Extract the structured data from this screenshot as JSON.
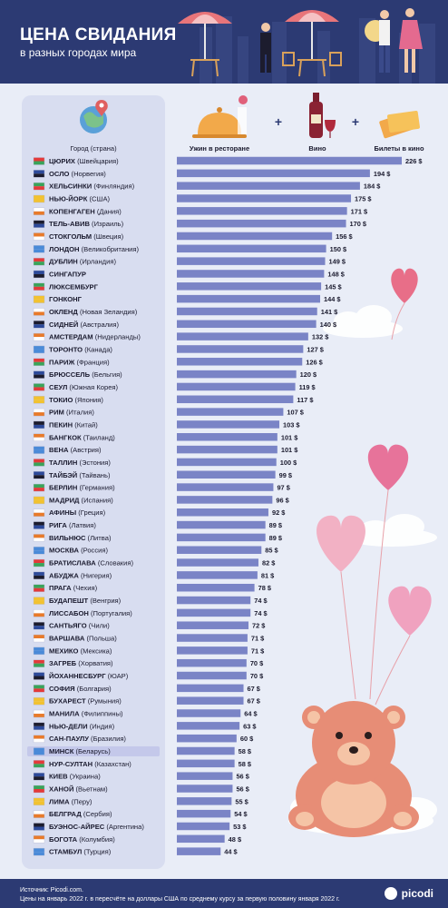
{
  "header": {
    "title": "ЦЕНА СВИДАНИЯ",
    "subtitle": "в разных городах мира"
  },
  "columns": {
    "city": "Город (страна)",
    "dinner": "Ужин в ресторане",
    "wine": "Вино",
    "cinema": "Билеты в кино"
  },
  "footer": {
    "source": "Источник: Picodi.com.",
    "note": "Цены на январь 2022 г. в пересчёте на доллары США по среднему курсу за первую половину января 2022 г.",
    "logo": "picodi"
  },
  "colors": {
    "header": "#2c3a73",
    "bar": "#7a84c6",
    "highlight": "#c4c8ea",
    "panel": "#d8ddf0",
    "background": "#e9edf7"
  },
  "chart_data": {
    "type": "bar",
    "orientation": "horizontal",
    "unit": "$",
    "highlight": "МИНСК",
    "rows": [
      {
        "city": "ЦЮРИХ",
        "country": "(Швейцария)",
        "value": 226,
        "label": "226 $"
      },
      {
        "city": "ОСЛО",
        "country": "(Норвегия)",
        "value": 194,
        "label": "194 $"
      },
      {
        "city": "ХЕЛЬСИНКИ",
        "country": "(Финляндия)",
        "value": 184,
        "label": "184 $"
      },
      {
        "city": "НЬЮ-ЙОРК",
        "country": "(США)",
        "value": 175,
        "label": "175 $"
      },
      {
        "city": "КОПЕНГАГЕН",
        "country": "(Дания)",
        "value": 171,
        "label": "171 $"
      },
      {
        "city": "ТЕЛЬ-АВИВ",
        "country": "(Израиль)",
        "value": 170,
        "label": "170 $"
      },
      {
        "city": "СТОКГОЛЬМ",
        "country": "(Швеция)",
        "value": 156,
        "label": "156 $"
      },
      {
        "city": "ЛОНДОН",
        "country": "(Великобритания)",
        "value": 150,
        "label": "150 $"
      },
      {
        "city": "ДУБЛИН",
        "country": "(Ирландия)",
        "value": 149,
        "label": "149 $"
      },
      {
        "city": "СИНГАПУР",
        "country": "",
        "value": 148,
        "label": "148 $"
      },
      {
        "city": "ЛЮКСЕМБУРГ",
        "country": "",
        "value": 145,
        "label": "145 $"
      },
      {
        "city": "ГОНКОНГ",
        "country": "",
        "value": 144,
        "label": "144 $"
      },
      {
        "city": "ОКЛЕНД",
        "country": "(Новая Зеландия)",
        "value": 141,
        "label": "141 $"
      },
      {
        "city": "СИДНЕЙ",
        "country": "(Австралия)",
        "value": 140,
        "label": "140 $"
      },
      {
        "city": "АМСТЕРДАМ",
        "country": "(Нидерланды)",
        "value": 132,
        "label": "132 $"
      },
      {
        "city": "ТОРОНТО",
        "country": "(Канада)",
        "value": 127,
        "label": "127 $"
      },
      {
        "city": "ПАРИЖ",
        "country": "(Франция)",
        "value": 126,
        "label": "126 $"
      },
      {
        "city": "БРЮССЕЛЬ",
        "country": "(Бельгия)",
        "value": 120,
        "label": "120 $"
      },
      {
        "city": "СЕУЛ",
        "country": "(Южная Корея)",
        "value": 119,
        "label": "119 $"
      },
      {
        "city": "ТОКИО",
        "country": "(Япония)",
        "value": 117,
        "label": "117 $"
      },
      {
        "city": "РИМ",
        "country": "(Италия)",
        "value": 107,
        "label": "107 $"
      },
      {
        "city": "ПЕКИН",
        "country": "(Китай)",
        "value": 103,
        "label": "103 $"
      },
      {
        "city": "БАНГКОК",
        "country": "(Таиланд)",
        "value": 101,
        "label": "101 $"
      },
      {
        "city": "ВЕНА",
        "country": "(Австрия)",
        "value": 101,
        "label": "101 $"
      },
      {
        "city": "ТАЛЛИН",
        "country": "(Эстония)",
        "value": 100,
        "label": "100 $"
      },
      {
        "city": "ТАЙБЭЙ",
        "country": "(Тайвань)",
        "value": 99,
        "label": "99 $"
      },
      {
        "city": "БЕРЛИН",
        "country": "(Германия)",
        "value": 97,
        "label": "97 $"
      },
      {
        "city": "МАДРИД",
        "country": "(Испания)",
        "value": 96,
        "label": "96 $"
      },
      {
        "city": "АФИНЫ",
        "country": "(Греция)",
        "value": 92,
        "label": "92 $"
      },
      {
        "city": "РИГА",
        "country": "(Латвия)",
        "value": 89,
        "label": "89 $"
      },
      {
        "city": "ВИЛЬНЮС",
        "country": "(Литва)",
        "value": 89,
        "label": "89 $"
      },
      {
        "city": "МОСКВА",
        "country": "(Россия)",
        "value": 85,
        "label": "85 $"
      },
      {
        "city": "БРАТИСЛАВА",
        "country": "(Словакия)",
        "value": 82,
        "label": "82 $"
      },
      {
        "city": "АБУДЖА",
        "country": "(Нигерия)",
        "value": 81,
        "label": "81 $"
      },
      {
        "city": "ПРАГА",
        "country": "(Чехия)",
        "value": 78,
        "label": "78 $"
      },
      {
        "city": "БУДАПЕШТ",
        "country": "(Венгрия)",
        "value": 74,
        "label": "74 $"
      },
      {
        "city": "ЛИССАБОН",
        "country": "(Португалия)",
        "value": 74,
        "label": "74 $"
      },
      {
        "city": "САНТЬЯГО",
        "country": "(Чили)",
        "value": 72,
        "label": "72 $"
      },
      {
        "city": "ВАРШАВА",
        "country": "(Польша)",
        "value": 71,
        "label": "71 $"
      },
      {
        "city": "МЕХИКО",
        "country": "(Мексика)",
        "value": 71,
        "label": "71 $"
      },
      {
        "city": "ЗАГРЕБ",
        "country": "(Хорватия)",
        "value": 70,
        "label": "70 $"
      },
      {
        "city": "ЙОХАННЕСБУРГ",
        "country": "(ЮАР)",
        "value": 70,
        "label": "70 $"
      },
      {
        "city": "СОФИЯ",
        "country": "(Болгария)",
        "value": 67,
        "label": "67 $"
      },
      {
        "city": "БУХАРЕСТ",
        "country": "(Румыния)",
        "value": 67,
        "label": "67 $"
      },
      {
        "city": "МАНИЛА",
        "country": "(Филиппины)",
        "value": 64,
        "label": "64 $"
      },
      {
        "city": "НЬЮ-ДЕЛИ",
        "country": "(Индия)",
        "value": 63,
        "label": "63 $"
      },
      {
        "city": "САН-ПАУЛУ",
        "country": "(Бразилия)",
        "value": 60,
        "label": "60 $"
      },
      {
        "city": "МИНСК",
        "country": "(Беларусь)",
        "value": 58,
        "label": "58 $"
      },
      {
        "city": "НУР-СУЛТАН",
        "country": "(Казахстан)",
        "value": 58,
        "label": "58 $"
      },
      {
        "city": "КИЕВ",
        "country": "(Украина)",
        "value": 56,
        "label": "56 $"
      },
      {
        "city": "ХАНОЙ",
        "country": "(Вьетнам)",
        "value": 56,
        "label": "56 $"
      },
      {
        "city": "ЛИМА",
        "country": "(Перу)",
        "value": 55,
        "label": "55 $"
      },
      {
        "city": "БЕЛГРАД",
        "country": "(Сербия)",
        "value": 54,
        "label": "54 $"
      },
      {
        "city": "БУЭНОС-АЙРЕС",
        "country": "(Аргентина)",
        "value": 53,
        "label": "53 $"
      },
      {
        "city": "БОГОТА",
        "country": "(Колумбия)",
        "value": 48,
        "label": "48 $"
      },
      {
        "city": "СТАМБУЛ",
        "country": "(Турция)",
        "value": 44,
        "label": "44 $"
      }
    ]
  }
}
